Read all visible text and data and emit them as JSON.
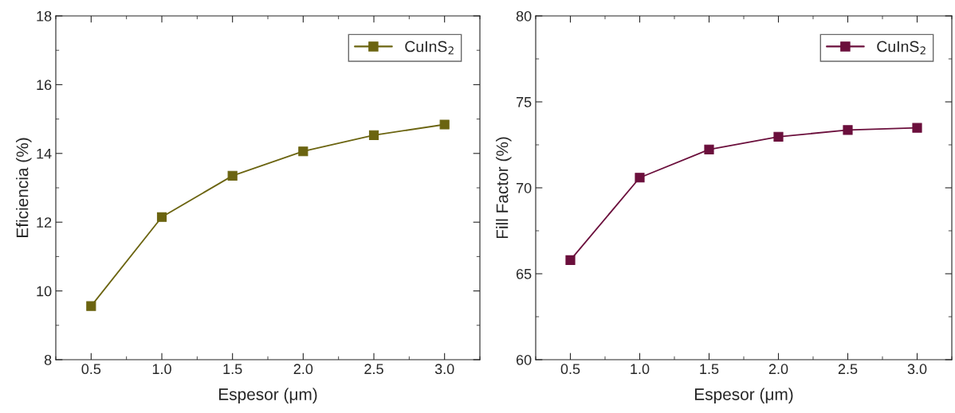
{
  "chart_data": [
    {
      "type": "line",
      "xlabel": "Espesor (μm)",
      "ylabel": "Eficiencia (%)",
      "x": [
        0.5,
        1.0,
        1.5,
        2.0,
        2.5,
        3.0
      ],
      "series": [
        {
          "name": "CuInS$_{2}$",
          "color": "#6b6410",
          "values": [
            9.56,
            12.15,
            13.35,
            14.06,
            14.53,
            14.84
          ]
        }
      ],
      "xlim": [
        0.25,
        3.25
      ],
      "xticks": [
        {
          "value": 0.5,
          "label": "0.5"
        },
        {
          "value": 1.0,
          "label": "1.0"
        },
        {
          "value": 1.5,
          "label": "1.5"
        },
        {
          "value": 2.0,
          "label": "2.0"
        },
        {
          "value": 2.5,
          "label": "2.5"
        },
        {
          "value": 3.0,
          "label": "3.0"
        }
      ],
      "ylim": [
        8,
        18
      ],
      "yticks": [
        8,
        10,
        12,
        14,
        16,
        18
      ],
      "grid": false,
      "legend": "top right",
      "marker": "square",
      "line_style": "solid"
    },
    {
      "type": "line",
      "xlabel": "Espesor (μm)",
      "ylabel": "Fill Factor (%)",
      "x": [
        0.5,
        1.0,
        1.5,
        2.0,
        2.5,
        3.0
      ],
      "series": [
        {
          "name": "CuInS$_{2}$",
          "color": "#6b0f3c",
          "values": [
            65.79,
            70.59,
            72.23,
            72.97,
            73.36,
            73.49
          ]
        }
      ],
      "xlim": [
        0.25,
        3.25
      ],
      "xticks": [
        {
          "value": 0.5,
          "label": "0.5"
        },
        {
          "value": 1.0,
          "label": "1.0"
        },
        {
          "value": 1.5,
          "label": "1.5"
        },
        {
          "value": 2.0,
          "label": "2.0"
        },
        {
          "value": 2.5,
          "label": "2.5"
        },
        {
          "value": 3.0,
          "label": "3.0"
        }
      ],
      "ylim": [
        60,
        80
      ],
      "yticks": [
        60,
        65,
        70,
        75,
        80
      ],
      "grid": false,
      "legend": "top right",
      "marker": "square",
      "line_style": "solid"
    }
  ]
}
